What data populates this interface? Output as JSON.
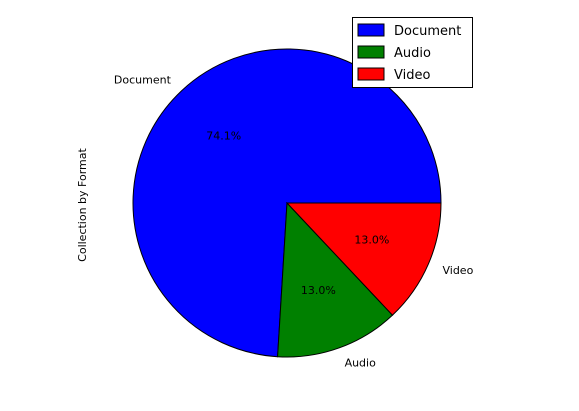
{
  "chart_data": {
    "type": "pie",
    "title": "",
    "ylabel": "Collection by Format",
    "start_angle_deg": 0,
    "direction": "counterclockwise",
    "slices": [
      {
        "label": "Document",
        "percent": 74.1,
        "pct_text": "74.1%",
        "color": "#0000ff"
      },
      {
        "label": "Audio",
        "percent": 13.0,
        "pct_text": "13.0%",
        "color": "#008000"
      },
      {
        "label": "Video",
        "percent": 13.0,
        "pct_text": "13.0%",
        "color": "#ff0000"
      }
    ],
    "legend": {
      "placement": "upper right",
      "entries": [
        "Document",
        "Audio",
        "Video"
      ]
    }
  }
}
